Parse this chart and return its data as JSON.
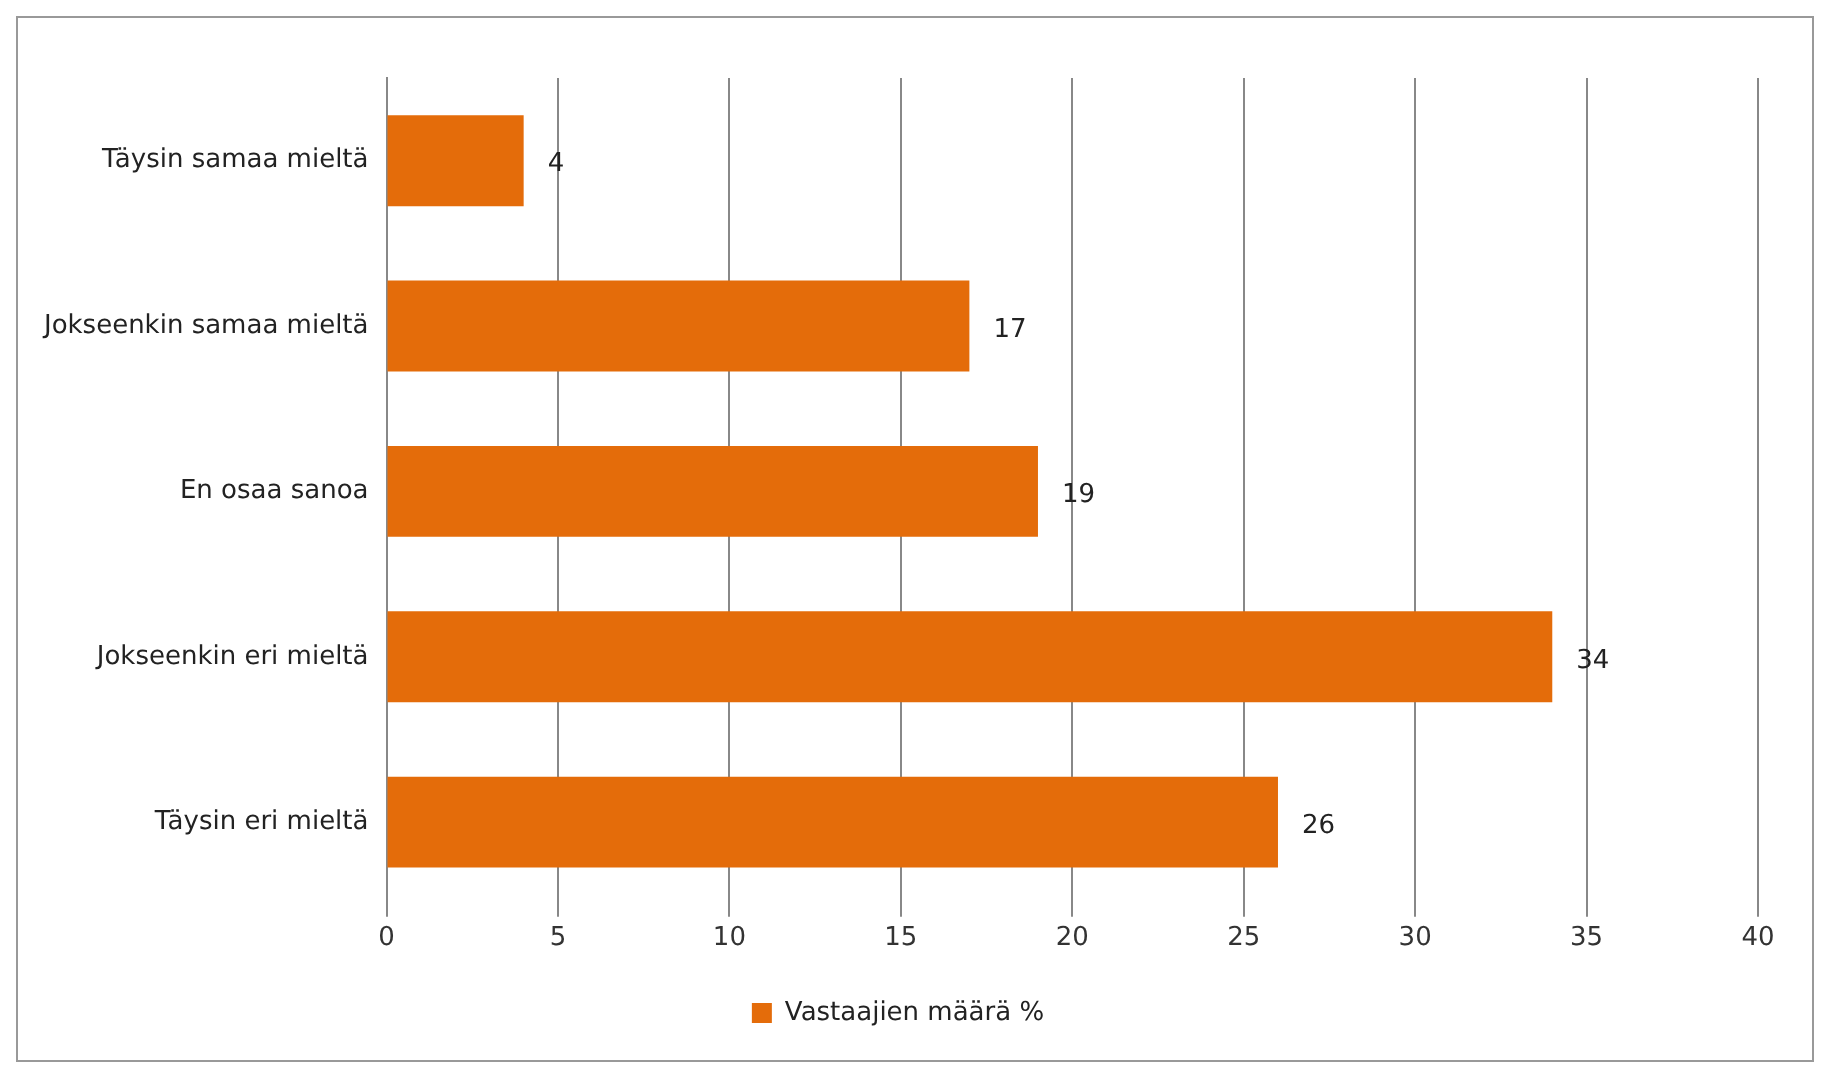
{
  "chart_data": {
    "type": "bar",
    "orientation": "horizontal",
    "categories": [
      "Täysin samaa mieltä",
      "Jokseenkin samaa mieltä",
      "En osaa sanoa",
      "Jokseenkin eri mieltä",
      "Täysin eri mieltä"
    ],
    "series": [
      {
        "name": "Vastaajien määrä %",
        "color": "#e46c0a",
        "values": [
          4,
          17,
          19,
          34,
          26
        ]
      }
    ],
    "xlim": [
      0,
      40
    ],
    "xticks": [
      0,
      5,
      10,
      15,
      20,
      25,
      30,
      35,
      40
    ],
    "grid": "x",
    "legend": "bottom",
    "data_labels": true
  }
}
